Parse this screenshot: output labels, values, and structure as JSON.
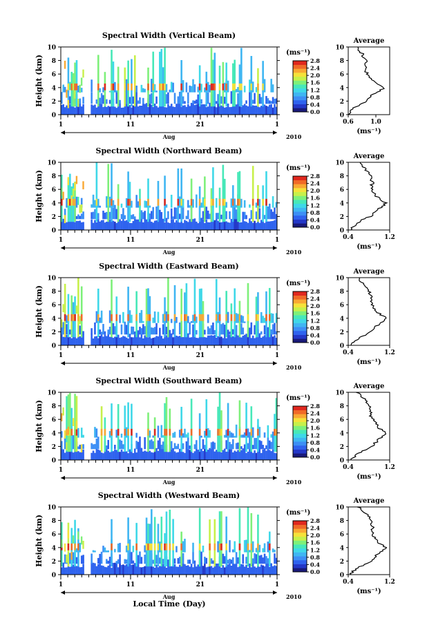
{
  "figure": {
    "xaxis_title": "Local Time (Day)",
    "colorbar_unit": "(ms⁻¹)",
    "avg_unit": "(ms⁻¹)",
    "colorscale": [
      "#1a1a7a",
      "#2438c8",
      "#2f63ee",
      "#3d8ff5",
      "#3fb6f2",
      "#3fd8e8",
      "#47e8b8",
      "#7ef07a",
      "#c7f04a",
      "#f5e23a",
      "#f9a833",
      "#f06a28",
      "#e0281e"
    ],
    "colors": {
      "axis": "#000000",
      "background": "#ffffff",
      "profile_line": "#000000"
    }
  },
  "chart_data": [
    {
      "type": "heatmap",
      "title": "Spectral Width (Vertical Beam)",
      "ylabel": "Height (km)",
      "ylim": [
        0,
        10
      ],
      "yticks": [
        "0",
        "2",
        "4",
        "6",
        "8",
        "10"
      ],
      "xlim": [
        1,
        32
      ],
      "xticks": [
        "1",
        "11",
        "21",
        "1"
      ],
      "month_label": "Aug",
      "year_label": "2010",
      "colorbar": {
        "ticks": [
          "0.0",
          "0.4",
          "0.8",
          "1.2",
          "1.6",
          "2.0",
          "2.4",
          "2.8"
        ],
        "range": [
          0,
          2.8
        ]
      },
      "average_profile": {
        "title": "Average",
        "xlim": [
          0.6,
          1.2
        ],
        "xticks": [
          "0.6",
          "1.0"
        ],
        "height_km": [
          0,
          0.5,
          1.0,
          1.5,
          2.0,
          2.5,
          3.0,
          3.5,
          4.0,
          4.5,
          5.0,
          5.5,
          6.0,
          6.5,
          7.0,
          7.5,
          8.0,
          8.5,
          9.0,
          9.5,
          10.0
        ],
        "value": [
          0.6,
          0.63,
          0.68,
          0.78,
          0.86,
          0.9,
          0.96,
          1.05,
          1.12,
          1.02,
          0.95,
          0.9,
          0.88,
          0.85,
          0.87,
          0.84,
          0.86,
          0.82,
          0.8,
          0.76,
          0.72
        ]
      }
    },
    {
      "type": "heatmap",
      "title": "Spectral Width (Northward Beam)",
      "ylabel": "Height (km)",
      "ylim": [
        0,
        10
      ],
      "yticks": [
        "0",
        "2",
        "4",
        "6",
        "8",
        "10"
      ],
      "xlim": [
        1,
        32
      ],
      "xticks": [
        "1",
        "11",
        "21",
        "1"
      ],
      "month_label": "Aug",
      "year_label": "2010",
      "colorbar": {
        "ticks": [
          "0.0",
          "0.4",
          "0.8",
          "1.2",
          "1.6",
          "2.0",
          "2.4",
          "2.8"
        ],
        "range": [
          0,
          2.8
        ]
      },
      "average_profile": {
        "title": "Average",
        "xlim": [
          0.4,
          1.2
        ],
        "xticks": [
          "0.4",
          "1.2"
        ],
        "height_km": [
          0,
          0.5,
          1.0,
          1.5,
          2.0,
          2.5,
          3.0,
          3.5,
          4.0,
          4.5,
          5.0,
          5.5,
          6.0,
          6.5,
          7.0,
          7.5,
          8.0,
          8.5,
          9.0,
          9.5,
          10.0
        ],
        "value": [
          0.45,
          0.5,
          0.56,
          0.68,
          0.82,
          0.9,
          0.96,
          1.06,
          1.12,
          1.02,
          0.94,
          0.9,
          0.86,
          0.84,
          0.88,
          0.84,
          0.82,
          0.78,
          0.74,
          0.66,
          0.6
        ]
      }
    },
    {
      "type": "heatmap",
      "title": "Spectral Width (Eastward Beam)",
      "ylabel": "Height (km)",
      "ylim": [
        0,
        10
      ],
      "yticks": [
        "0",
        "2",
        "4",
        "6",
        "8",
        "10"
      ],
      "xlim": [
        1,
        32
      ],
      "xticks": [
        "1",
        "11",
        "21",
        "1"
      ],
      "month_label": "Aug",
      "year_label": "2010",
      "colorbar": {
        "ticks": [
          "0.0",
          "0.4",
          "0.8",
          "1.2",
          "1.6",
          "2.0",
          "2.4",
          "2.8"
        ],
        "range": [
          0,
          2.8
        ]
      },
      "average_profile": {
        "title": "Average",
        "xlim": [
          0.4,
          1.2
        ],
        "xticks": [
          "0.4",
          "1.2"
        ],
        "height_km": [
          0,
          0.5,
          1.0,
          1.5,
          2.0,
          2.5,
          3.0,
          3.5,
          4.0,
          4.5,
          5.0,
          5.5,
          6.0,
          6.5,
          7.0,
          7.5,
          8.0,
          8.5,
          9.0,
          9.5,
          10.0
        ],
        "value": [
          0.45,
          0.5,
          0.58,
          0.72,
          0.84,
          0.9,
          0.97,
          1.06,
          1.13,
          1.03,
          0.95,
          0.9,
          0.86,
          0.83,
          0.86,
          0.82,
          0.8,
          0.76,
          0.72,
          0.64,
          0.58
        ]
      }
    },
    {
      "type": "heatmap",
      "title": "Spectral Width (Southward Beam)",
      "ylabel": "Height (km)",
      "ylim": [
        0,
        10
      ],
      "yticks": [
        "0",
        "2",
        "4",
        "6",
        "8",
        "10"
      ],
      "xlim": [
        1,
        32
      ],
      "xticks": [
        "1",
        "11",
        "21",
        "1"
      ],
      "month_label": "Aug",
      "year_label": "2010",
      "colorbar": {
        "ticks": [
          "0.0",
          "0.4",
          "0.8",
          "1.2",
          "1.6",
          "2.0",
          "2.4",
          "2.8"
        ],
        "range": [
          0,
          2.8
        ]
      },
      "average_profile": {
        "title": "Average",
        "xlim": [
          0.4,
          1.2
        ],
        "xticks": [
          "0.4",
          "1.2"
        ],
        "height_km": [
          0,
          0.5,
          1.0,
          1.5,
          2.0,
          2.5,
          3.0,
          3.5,
          4.0,
          4.5,
          5.0,
          5.5,
          6.0,
          6.5,
          7.0,
          7.5,
          8.0,
          8.5,
          9.0,
          9.5,
          10.0
        ],
        "value": [
          0.45,
          0.52,
          0.6,
          0.74,
          0.85,
          0.92,
          0.98,
          1.07,
          1.14,
          1.03,
          0.96,
          0.92,
          0.88,
          0.84,
          0.86,
          0.82,
          0.8,
          0.76,
          0.72,
          0.64,
          0.58
        ]
      }
    },
    {
      "type": "heatmap",
      "title": "Spectral Width (Westward Beam)",
      "ylabel": "Height (km)",
      "ylim": [
        0,
        10
      ],
      "yticks": [
        "0",
        "2",
        "4",
        "6",
        "8",
        "10"
      ],
      "xlim": [
        1,
        32
      ],
      "xticks": [
        "1",
        "11",
        "21",
        "1"
      ],
      "month_label": "Aug",
      "year_label": "2010",
      "colorbar": {
        "ticks": [
          "0.0",
          "0.4",
          "0.8",
          "1.2",
          "1.6",
          "2.0",
          "2.4",
          "2.8"
        ],
        "range": [
          0,
          2.8
        ]
      },
      "average_profile": {
        "title": "Average",
        "xlim": [
          0.4,
          1.2
        ],
        "xticks": [
          "0.4",
          "1.2"
        ],
        "height_km": [
          0,
          0.5,
          1.0,
          1.5,
          2.0,
          2.5,
          3.0,
          3.5,
          4.0,
          4.5,
          5.0,
          5.5,
          6.0,
          6.5,
          7.0,
          7.5,
          8.0,
          8.5,
          9.0,
          9.5,
          10.0
        ],
        "value": [
          0.45,
          0.5,
          0.58,
          0.72,
          0.84,
          0.91,
          0.97,
          1.06,
          1.12,
          1.02,
          0.95,
          0.91,
          0.88,
          0.85,
          0.88,
          0.84,
          0.83,
          0.8,
          0.76,
          0.68,
          0.6
        ]
      }
    }
  ]
}
